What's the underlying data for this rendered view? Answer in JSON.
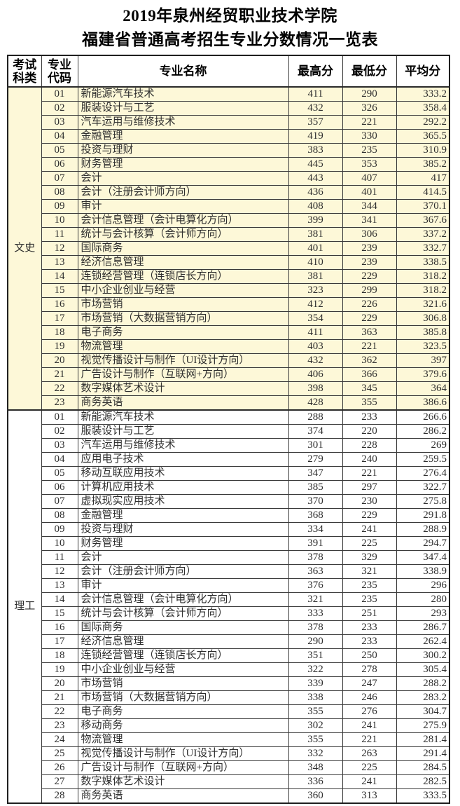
{
  "page": {
    "title_line1": "2019年泉州经贸职业技术学院",
    "title_line2": "福建省普通高考招生专业分数情况一览表"
  },
  "colors": {
    "wenshi_row_bg": "#FDF8D8",
    "ligong_row_bg": "#FFFFFF",
    "border": "#3a3a3a",
    "outer_border": "#1f1f1f"
  },
  "table": {
    "headers": {
      "category": "考试科类",
      "code": "专业代码",
      "name": "专业名称",
      "max": "最高分",
      "min": "最低分",
      "avg": "平均分"
    },
    "sections": [
      {
        "category": "文史",
        "bg": "#FDF8D8",
        "rows": [
          {
            "code": "01",
            "name": "新能源汽车技术",
            "max": "411",
            "min": "290",
            "avg": "333.2"
          },
          {
            "code": "02",
            "name": "服装设计与工艺",
            "max": "432",
            "min": "326",
            "avg": "358.4"
          },
          {
            "code": "03",
            "name": "汽车运用与维修技术",
            "max": "357",
            "min": "221",
            "avg": "292.2"
          },
          {
            "code": "04",
            "name": "金融管理",
            "max": "419",
            "min": "330",
            "avg": "365.5"
          },
          {
            "code": "05",
            "name": "投资与理财",
            "max": "383",
            "min": "235",
            "avg": "310.9"
          },
          {
            "code": "06",
            "name": "财务管理",
            "max": "445",
            "min": "353",
            "avg": "385.2"
          },
          {
            "code": "07",
            "name": "会计",
            "max": "443",
            "min": "407",
            "avg": "417"
          },
          {
            "code": "08",
            "name": "会计（注册会计师方向）",
            "max": "436",
            "min": "401",
            "avg": "414.5"
          },
          {
            "code": "09",
            "name": "审计",
            "max": "408",
            "min": "344",
            "avg": "370.1"
          },
          {
            "code": "10",
            "name": "会计信息管理（会计电算化方向）",
            "max": "399",
            "min": "341",
            "avg": "367.6"
          },
          {
            "code": "11",
            "name": "统计与会计核算（会计师方向）",
            "max": "381",
            "min": "306",
            "avg": "337.2"
          },
          {
            "code": "12",
            "name": "国际商务",
            "max": "401",
            "min": "239",
            "avg": "332.7"
          },
          {
            "code": "13",
            "name": "经济信息管理",
            "max": "410",
            "min": "239",
            "avg": "338.5"
          },
          {
            "code": "14",
            "name": "连锁经营管理（连锁店长方向）",
            "max": "381",
            "min": "229",
            "avg": "318.2"
          },
          {
            "code": "15",
            "name": "中小企业创业与经营",
            "max": "323",
            "min": "299",
            "avg": "318.2"
          },
          {
            "code": "16",
            "name": "市场营销",
            "max": "412",
            "min": "226",
            "avg": "321.6"
          },
          {
            "code": "17",
            "name": "市场营销（大数据营销方向）",
            "max": "354",
            "min": "229",
            "avg": "306.8"
          },
          {
            "code": "18",
            "name": "电子商务",
            "max": "411",
            "min": "363",
            "avg": "385.8"
          },
          {
            "code": "19",
            "name": "物流管理",
            "max": "403",
            "min": "221",
            "avg": "323.5"
          },
          {
            "code": "20",
            "name": "视觉传播设计与制作（UI设计方向）",
            "max": "432",
            "min": "362",
            "avg": "397"
          },
          {
            "code": "21",
            "name": "广告设计与制作（互联网+方向）",
            "max": "406",
            "min": "366",
            "avg": "379.6"
          },
          {
            "code": "22",
            "name": "数字媒体艺术设计",
            "max": "398",
            "min": "345",
            "avg": "364"
          },
          {
            "code": "23",
            "name": "商务英语",
            "max": "428",
            "min": "355",
            "avg": "386.6"
          }
        ]
      },
      {
        "category": "理工",
        "bg": "#FFFFFF",
        "rows": [
          {
            "code": "01",
            "name": "新能源汽车技术",
            "max": "288",
            "min": "233",
            "avg": "266.6"
          },
          {
            "code": "02",
            "name": "服装设计与工艺",
            "max": "374",
            "min": "220",
            "avg": "286.2"
          },
          {
            "code": "03",
            "name": "汽车运用与维修技术",
            "max": "301",
            "min": "228",
            "avg": "269"
          },
          {
            "code": "04",
            "name": "应用电子技术",
            "max": "279",
            "min": "240",
            "avg": "259.5"
          },
          {
            "code": "05",
            "name": "移动互联应用技术",
            "max": "347",
            "min": "221",
            "avg": "276.4"
          },
          {
            "code": "06",
            "name": "计算机应用技术",
            "max": "385",
            "min": "297",
            "avg": "322.7"
          },
          {
            "code": "07",
            "name": "虚拟现实应用技术",
            "max": "370",
            "min": "230",
            "avg": "275.8"
          },
          {
            "code": "08",
            "name": "金融管理",
            "max": "368",
            "min": "229",
            "avg": "291.8"
          },
          {
            "code": "09",
            "name": "投资与理财",
            "max": "334",
            "min": "241",
            "avg": "288.9"
          },
          {
            "code": "10",
            "name": "财务管理",
            "max": "391",
            "min": "225",
            "avg": "294.7"
          },
          {
            "code": "11",
            "name": "会计",
            "max": "378",
            "min": "329",
            "avg": "347.4"
          },
          {
            "code": "12",
            "name": "会计（注册会计师方向）",
            "max": "363",
            "min": "321",
            "avg": "338.9"
          },
          {
            "code": "13",
            "name": "审计",
            "max": "376",
            "min": "235",
            "avg": "296"
          },
          {
            "code": "14",
            "name": "会计信息管理（会计电算化方向）",
            "max": "321",
            "min": "235",
            "avg": "280"
          },
          {
            "code": "15",
            "name": "统计与会计核算（会计师方向）",
            "max": "333",
            "min": "251",
            "avg": "293"
          },
          {
            "code": "16",
            "name": "国际商务",
            "max": "378",
            "min": "233",
            "avg": "286.7"
          },
          {
            "code": "17",
            "name": "经济信息管理",
            "max": "290",
            "min": "233",
            "avg": "262.4"
          },
          {
            "code": "18",
            "name": "连锁经营管理（连锁店长方向）",
            "max": "351",
            "min": "250",
            "avg": "300.2"
          },
          {
            "code": "19",
            "name": "中小企业创业与经营",
            "max": "322",
            "min": "278",
            "avg": "305.4"
          },
          {
            "code": "20",
            "name": "市场营销",
            "max": "339",
            "min": "247",
            "avg": "288.2"
          },
          {
            "code": "21",
            "name": "市场营销（大数据营销方向）",
            "max": "338",
            "min": "246",
            "avg": "283.2"
          },
          {
            "code": "22",
            "name": "电子商务",
            "max": "355",
            "min": "276",
            "avg": "304.7"
          },
          {
            "code": "23",
            "name": "移动商务",
            "max": "302",
            "min": "241",
            "avg": "275.9"
          },
          {
            "code": "24",
            "name": "物流管理",
            "max": "355",
            "min": "221",
            "avg": "281.4"
          },
          {
            "code": "25",
            "name": "视觉传播设计与制作（UI设计方向）",
            "max": "332",
            "min": "263",
            "avg": "291.4"
          },
          {
            "code": "26",
            "name": "广告设计与制作（互联网+方向）",
            "max": "348",
            "min": "225",
            "avg": "284.5"
          },
          {
            "code": "27",
            "name": "数字媒体艺术设计",
            "max": "336",
            "min": "241",
            "avg": "282.5"
          },
          {
            "code": "28",
            "name": "商务英语",
            "max": "360",
            "min": "313",
            "avg": "333.5"
          }
        ]
      }
    ]
  }
}
